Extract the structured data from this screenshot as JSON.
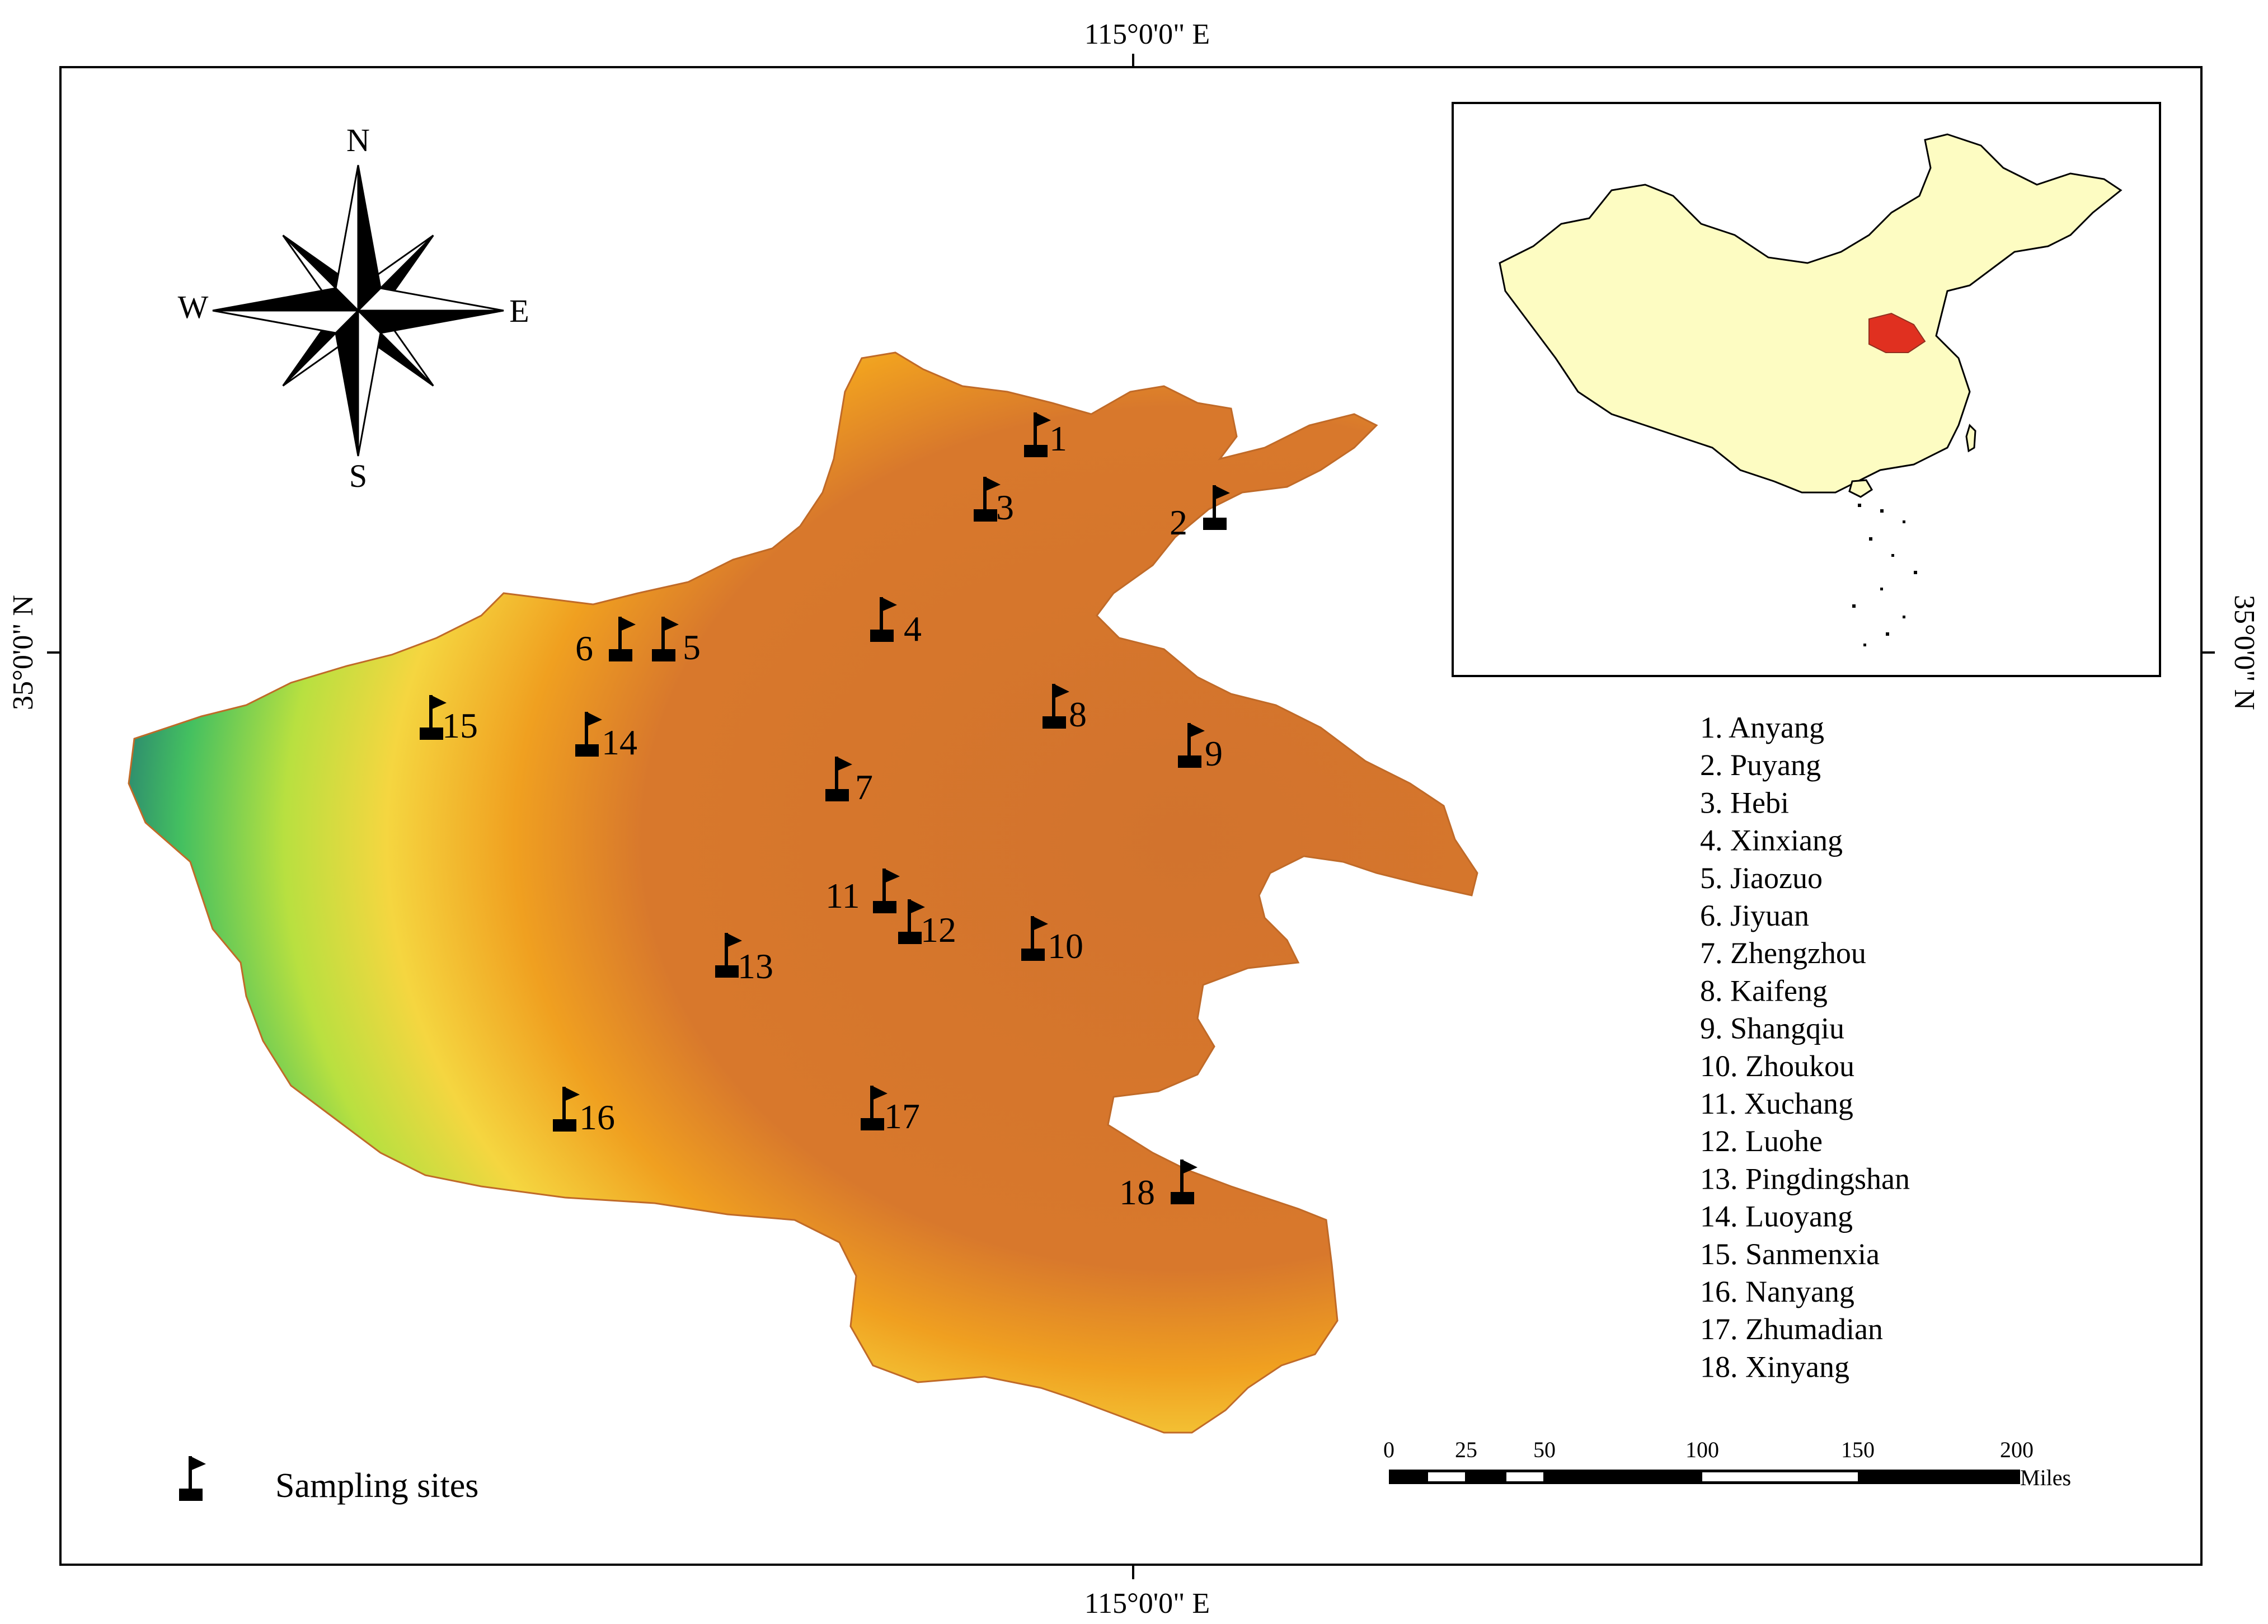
{
  "graticule": {
    "top_label": "115°0'0\" E",
    "bottom_label": "115°0'0\" E",
    "left_label": "35°0'0\" N",
    "right_label": "35°0'0\" N"
  },
  "compass": {
    "n": "N",
    "s": "S",
    "e": "E",
    "w": "W"
  },
  "colors": {
    "lowland": "#d2732d",
    "midland": "#f0a020",
    "upland": "#f5e640",
    "highland_green": "#44c060",
    "mountain_blue": "#0a3a85",
    "inset_land": "#fdfcc2",
    "inset_highlight": "#e03020"
  },
  "sites": [
    {
      "id": "1",
      "name": "Anyang"
    },
    {
      "id": "2",
      "name": "Puyang"
    },
    {
      "id": "3",
      "name": "Hebi"
    },
    {
      "id": "4",
      "name": "Xinxiang"
    },
    {
      "id": "5",
      "name": "Jiaozuo"
    },
    {
      "id": "6",
      "name": "Jiyuan"
    },
    {
      "id": "7",
      "name": "Zhengzhou"
    },
    {
      "id": "8",
      "name": "Kaifeng"
    },
    {
      "id": "9",
      "name": "Shangqiu"
    },
    {
      "id": "10",
      "name": "Zhoukou"
    },
    {
      "id": "11",
      "name": "Xuchang"
    },
    {
      "id": "12",
      "name": "Luohe"
    },
    {
      "id": "13",
      "name": "Pingdingshan"
    },
    {
      "id": "14",
      "name": "Luoyang"
    },
    {
      "id": "15",
      "name": "Sanmenxia"
    },
    {
      "id": "16",
      "name": "Nanyang"
    },
    {
      "id": "17",
      "name": "Zhumadian"
    },
    {
      "id": "18",
      "name": "Xinyang"
    }
  ],
  "legend_list": [
    "1. Anyang",
    "2. Puyang",
    "3. Hebi",
    "4. Xinxiang",
    "5. Jiaozuo",
    "6. Jiyuan",
    "7. Zhengzhou",
    "8. Kaifeng",
    "9. Shangqiu",
    "10. Zhoukou",
    "11. Xuchang",
    "12. Luohe",
    "13. Pingdingshan",
    "14. Luoyang",
    "15. Sanmenxia",
    "16. Nanyang",
    "17. Zhumadian",
    "18. Xinyang"
  ],
  "legend": {
    "sampling_label": "Sampling sites",
    "flag_icon": "flag-icon"
  },
  "scale_bar": {
    "ticks": [
      "0",
      "25",
      "50",
      "100",
      "150",
      "200"
    ],
    "unit": "Miles"
  }
}
